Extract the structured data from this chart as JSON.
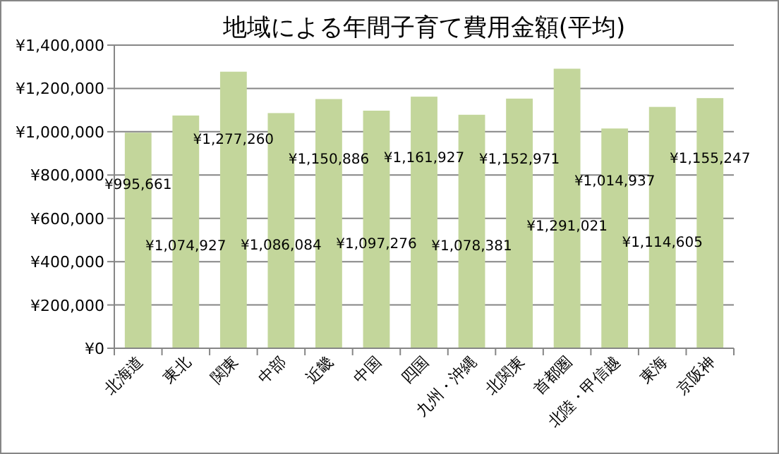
{
  "chart_data": {
    "type": "bar",
    "title": "地域による年間子育て費用金額(平均)",
    "categories": [
      "北海道",
      "東北",
      "関東",
      "中部",
      "近畿",
      "中国",
      "四国",
      "九州・沖縄",
      "北関東",
      "首都圏",
      "北陸・甲信越",
      "東海",
      "京阪神"
    ],
    "values": [
      995661,
      1074927,
      1277260,
      1086084,
      1150886,
      1097276,
      1161927,
      1078381,
      1152971,
      1291021,
      1014937,
      1114605,
      1155247
    ],
    "value_labels": [
      "¥995,661",
      "¥1,074,927",
      "¥1,277,260",
      "¥1,086,084",
      "¥1,150,886",
      "¥1,097,276",
      "¥1,161,927",
      "¥1,078,381",
      "¥1,152,971",
      "¥1,291,021",
      "¥1,014,937",
      "¥1,114,605",
      "¥1,155,247"
    ],
    "color": "#c3d69b",
    "ylim": [
      0,
      1400000
    ],
    "yticks": [
      {
        "value": 0,
        "label": "¥0"
      },
      {
        "value": 200000,
        "label": "¥200,000"
      },
      {
        "value": 400000,
        "label": "¥400,000"
      },
      {
        "value": 600000,
        "label": "¥600,000"
      },
      {
        "value": 800000,
        "label": "¥800,000"
      },
      {
        "value": 1000000,
        "label": "¥1,000,000"
      },
      {
        "value": 1200000,
        "label": "¥1,200,000"
      },
      {
        "value": 1400000,
        "label": "¥1,400,000"
      }
    ],
    "grid": "y"
  }
}
